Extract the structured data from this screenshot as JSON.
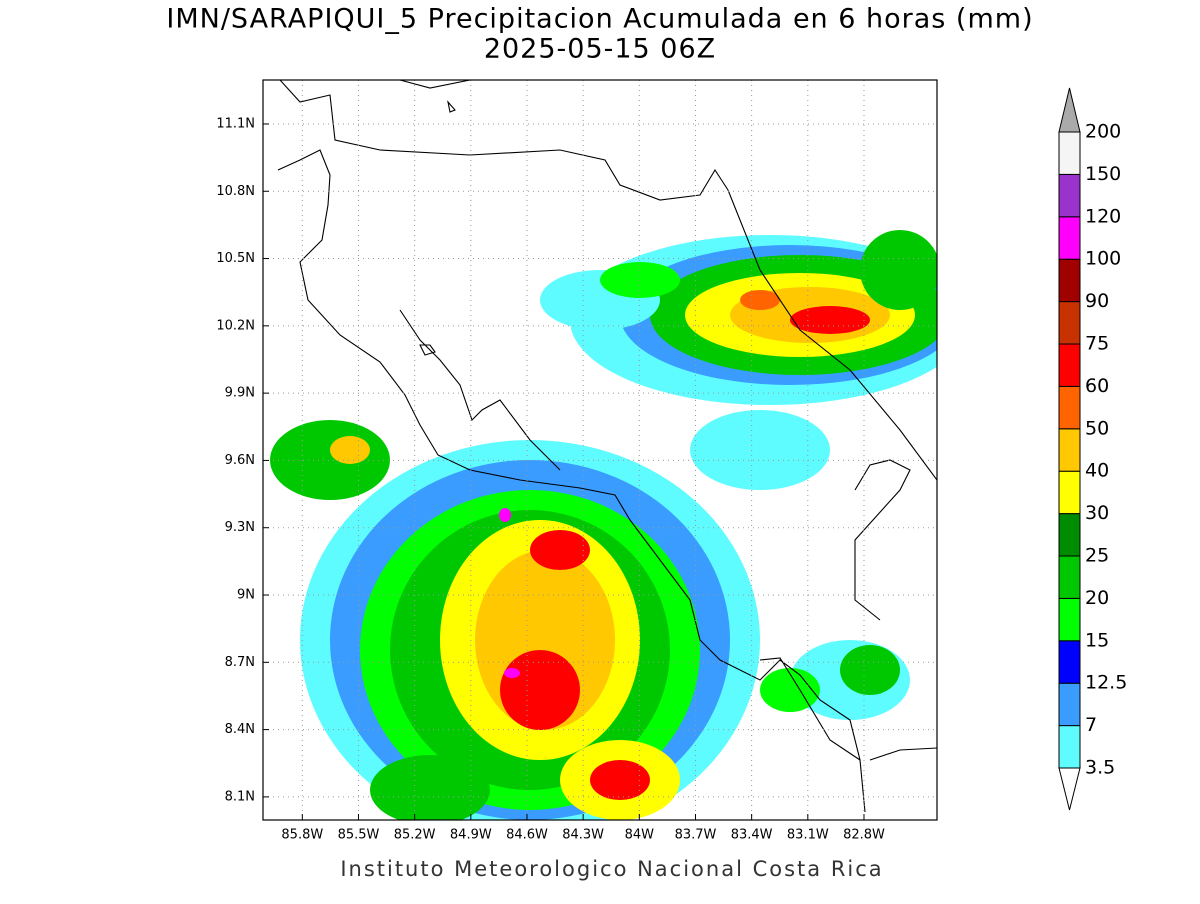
{
  "title": "IMN/SARAPIQUI_5 Precipitacion Acumulada en 6 horas (mm)",
  "subtitle": "2025-05-15 06Z",
  "footer": "Instituto Meteorologico Nacional Costa Rica",
  "map": {
    "xlim": [
      -86.01,
      -82.41
    ],
    "ylim": [
      7.997,
      11.296
    ],
    "xticks": [
      {
        "value": -85.8,
        "label": "85.8W"
      },
      {
        "value": -85.5,
        "label": "85.5W"
      },
      {
        "value": -85.2,
        "label": "85.2W"
      },
      {
        "value": -84.9,
        "label": "84.9W"
      },
      {
        "value": -84.6,
        "label": "84.6W"
      },
      {
        "value": -84.3,
        "label": "84.3W"
      },
      {
        "value": -84,
        "label": "84W"
      },
      {
        "value": -83.7,
        "label": "83.7W"
      },
      {
        "value": -83.4,
        "label": "83.4W"
      },
      {
        "value": -83.1,
        "label": "83.1W"
      },
      {
        "value": -82.8,
        "label": "82.8W"
      }
    ],
    "yticks": [
      {
        "value": 8.1,
        "label": "8.1N"
      },
      {
        "value": 8.4,
        "label": "8.4N"
      },
      {
        "value": 8.7,
        "label": "8.7N"
      },
      {
        "value": 9,
        "label": "9N"
      },
      {
        "value": 9.3,
        "label": "9.3N"
      },
      {
        "value": 9.6,
        "label": "9.6N"
      },
      {
        "value": 9.9,
        "label": "9.9N"
      },
      {
        "value": 10.2,
        "label": "10.2N"
      },
      {
        "value": 10.5,
        "label": "10.5N"
      },
      {
        "value": 10.8,
        "label": "10.8N"
      },
      {
        "value": 11.1,
        "label": "11.1N"
      }
    ],
    "grid": true
  },
  "colorbar": {
    "levels": [
      3.5,
      7,
      12.5,
      15,
      20,
      25,
      30,
      40,
      50,
      60,
      75,
      90,
      100,
      120,
      150,
      200
    ],
    "colors": [
      "#5ffcff",
      "#3a9cff",
      "#0000ff",
      "#00ff00",
      "#00c800",
      "#008c00",
      "#ffff00",
      "#ffc800",
      "#ff6400",
      "#ff0000",
      "#c83200",
      "#a00000",
      "#ff00ff",
      "#9933cc",
      "#f5f5f5"
    ],
    "under_color": "#ffffff",
    "over_color": "#aaaaaa"
  }
}
